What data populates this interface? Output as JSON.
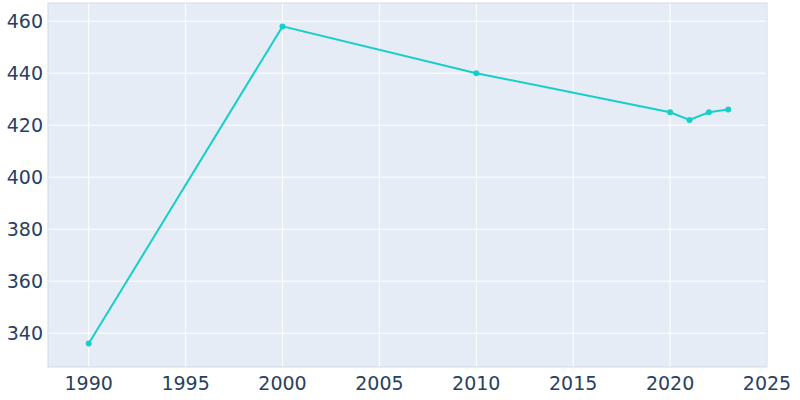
{
  "chart_data": {
    "type": "line",
    "x": [
      1990,
      2000,
      2010,
      2020,
      2021,
      2022,
      2023
    ],
    "values": [
      336,
      458,
      440,
      425,
      422,
      425,
      426
    ],
    "color": "#17cfc9",
    "marker": "circle",
    "xlim": [
      1987.9,
      2025
    ],
    "xticks": [
      1990,
      1995,
      2000,
      2005,
      2010,
      2015,
      2020,
      2025
    ],
    "ylim": [
      327,
      467
    ],
    "yticks": [
      340,
      360,
      380,
      400,
      420,
      440,
      460
    ],
    "grid": true
  }
}
